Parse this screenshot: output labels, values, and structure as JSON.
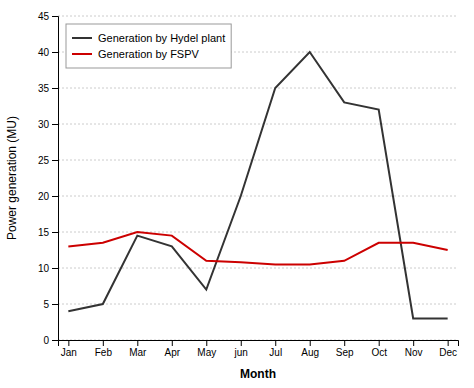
{
  "chart_data": {
    "type": "line",
    "categories": [
      "Jan",
      "Feb",
      "Mar",
      "Apr",
      "May",
      "jun",
      "Jul",
      "Aug",
      "Sep",
      "Oct",
      "Nov",
      "Dec"
    ],
    "series": [
      {
        "name": "Generation by Hydel plant",
        "color": "#333333",
        "values": [
          4,
          5,
          14.5,
          13,
          7,
          20,
          35,
          40,
          33,
          32,
          3,
          3
        ]
      },
      {
        "name": "Generation by FSPV",
        "color": "#cc0000",
        "values": [
          13,
          13.5,
          15,
          14.5,
          11,
          10.8,
          10.5,
          10.5,
          11,
          13.5,
          13.5,
          12.5
        ]
      }
    ],
    "xlabel": "Month",
    "ylabel": "Power generation (MU)",
    "ylim": [
      0,
      45
    ],
    "yticks": [
      0,
      5,
      10,
      15,
      20,
      25,
      30,
      35,
      40,
      45
    ],
    "grid": true,
    "legend": "upper-left"
  }
}
